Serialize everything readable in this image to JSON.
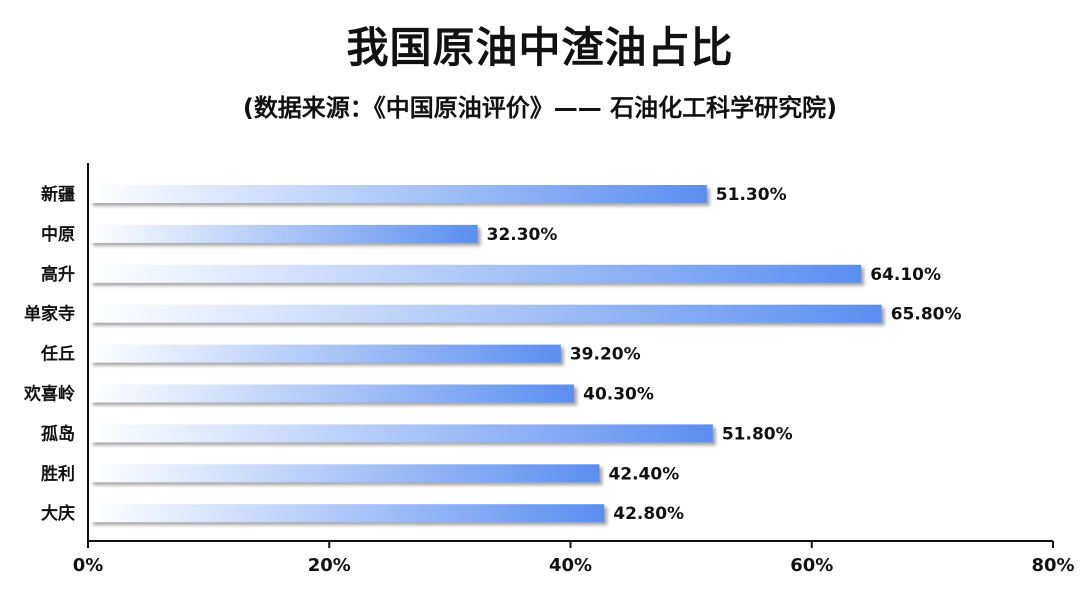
{
  "chart_data": {
    "type": "bar",
    "orientation": "horizontal",
    "title": "我国原油中渣油占比",
    "subtitle": "(数据来源：《中国原油评价》—— 石油化工科学研究院)",
    "categories": [
      "新疆",
      "中原",
      "高升",
      "单家寺",
      "任丘",
      "欢喜岭",
      "孤岛",
      "胜利",
      "大庆"
    ],
    "values": [
      51.3,
      32.3,
      64.1,
      65.8,
      39.2,
      40.3,
      51.8,
      42.4,
      42.8
    ],
    "value_labels": [
      "51.30%",
      "32.30%",
      "64.10%",
      "65.80%",
      "39.20%",
      "40.30%",
      "51.80%",
      "42.40%",
      "42.80%"
    ],
    "xlim": [
      0,
      80
    ],
    "xticks": [
      0,
      20,
      40,
      60,
      80
    ],
    "xtick_labels": [
      "0%",
      "20%",
      "40%",
      "60%",
      "80%"
    ],
    "grid": false,
    "colors": {
      "bar_start": "#ffffff",
      "bar_end": "#5b8ef0",
      "shadow": "#8a8a8a",
      "axis": "#111111"
    }
  }
}
